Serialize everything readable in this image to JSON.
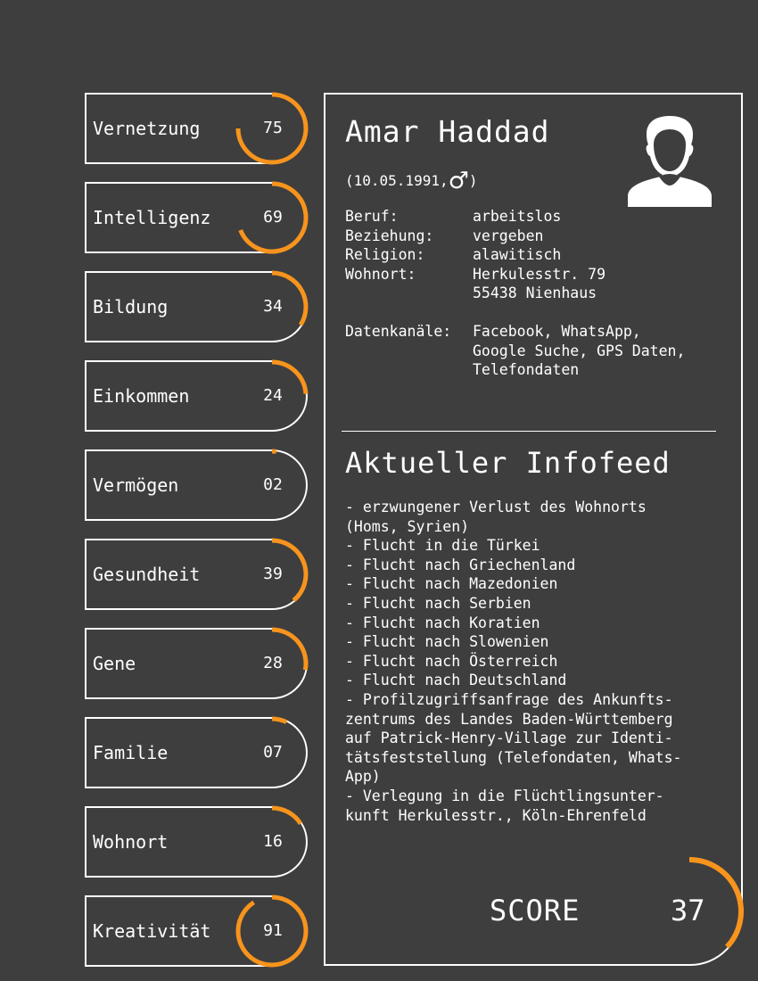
{
  "colors": {
    "background": "#3e3e3e",
    "accent": "#f7941d",
    "foreground": "#ffffff"
  },
  "stats": [
    {
      "label": "Vernetzung",
      "value": "75"
    },
    {
      "label": "Intelligenz",
      "value": "69"
    },
    {
      "label": "Bildung",
      "value": "34"
    },
    {
      "label": "Einkommen",
      "value": "24"
    },
    {
      "label": "Vermögen",
      "value": "02"
    },
    {
      "label": "Gesundheit",
      "value": "39"
    },
    {
      "label": "Gene",
      "value": "28"
    },
    {
      "label": "Familie",
      "value": "07"
    },
    {
      "label": "Wohnort",
      "value": "16"
    },
    {
      "label": "Kreativität",
      "value": "91"
    }
  ],
  "profile": {
    "name": "Amar Haddad",
    "birthdate": "(10.05.1991,",
    "gender_symbol": "♂",
    "birthdate_close": ")",
    "avatar_icon": "user-silhouette-icon",
    "fields": [
      {
        "key": "Beruf:",
        "value": "arbeitslos"
      },
      {
        "key": "Beziehung:",
        "value": "vergeben"
      },
      {
        "key": "Religion:",
        "value": "alawitisch"
      },
      {
        "key": "Wohnort:",
        "value": "Herkulesstr. 79"
      },
      {
        "key": "",
        "value": "55438 Nienhaus"
      }
    ],
    "channels_key": "Datenkanäle:",
    "channels": [
      "Facebook, WhatsApp,",
      "Google Suche, GPS Daten,",
      "Telefondaten"
    ]
  },
  "feed": {
    "title": "Aktueller Infofeed",
    "lines": [
      "- erzwungener Verlust des Wohnorts",
      "(Homs, Syrien)",
      "- Flucht in die Türkei",
      "- Flucht nach Griechenland",
      "- Flucht nach Mazedonien",
      "- Flucht nach Serbien",
      "- Flucht nach Koratien",
      "- Flucht nach Slowenien",
      "- Flucht nach Österreich",
      "- Flucht nach Deutschland",
      "- Profilzugriffsanfrage des Ankunfts-",
      "zentrums des Landes Baden-Württemberg",
      "auf Patrick-Henry-Village zur Identi-",
      "tätsfeststellung (Telefondaten, Whats-",
      "App)",
      "- Verlegung in die Flüchtlingsunter-",
      "kunft Herkulesstr., Köln-Ehrenfeld"
    ]
  },
  "score": {
    "label": "SCORE",
    "value": "37"
  }
}
